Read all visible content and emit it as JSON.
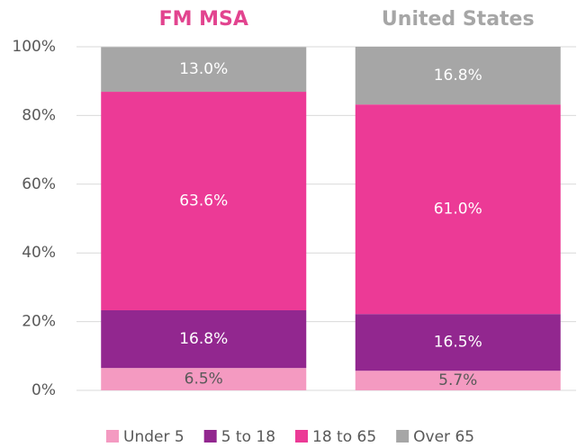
{
  "chart_data": {
    "type": "stacked_bar",
    "categories": [
      "FM MSA",
      "United States"
    ],
    "category_colors": [
      "#e2448f",
      "#a6a6a6"
    ],
    "series": [
      {
        "name": "Under 5",
        "color": "#f49ac1",
        "label_color": "#595959",
        "values": [
          6.5,
          5.7
        ],
        "value_labels": [
          "6.5%",
          "5.7%"
        ]
      },
      {
        "name": "5 to 18",
        "color": "#92278f",
        "label_color": "#ffffff",
        "values": [
          16.8,
          16.5
        ],
        "value_labels": [
          "16.8%",
          "16.5%"
        ]
      },
      {
        "name": "18 to 65",
        "color": "#ec3a96",
        "label_color": "#ffffff",
        "values": [
          63.6,
          61.0
        ],
        "value_labels": [
          "63.6%",
          "61.0%"
        ]
      },
      {
        "name": "Over 65",
        "color": "#a6a6a6",
        "label_color": "#ffffff",
        "values": [
          13.0,
          16.8
        ],
        "value_labels": [
          "13.0%",
          "16.8%"
        ]
      }
    ],
    "ylim": [
      0,
      100
    ],
    "yticks": [
      {
        "value": 0,
        "label": "0%"
      },
      {
        "value": 20,
        "label": "20%"
      },
      {
        "value": 40,
        "label": "40%"
      },
      {
        "value": 60,
        "label": "60%"
      },
      {
        "value": 80,
        "label": "80%"
      },
      {
        "value": 100,
        "label": "100%"
      }
    ],
    "grid": true,
    "legend": "bottom"
  }
}
